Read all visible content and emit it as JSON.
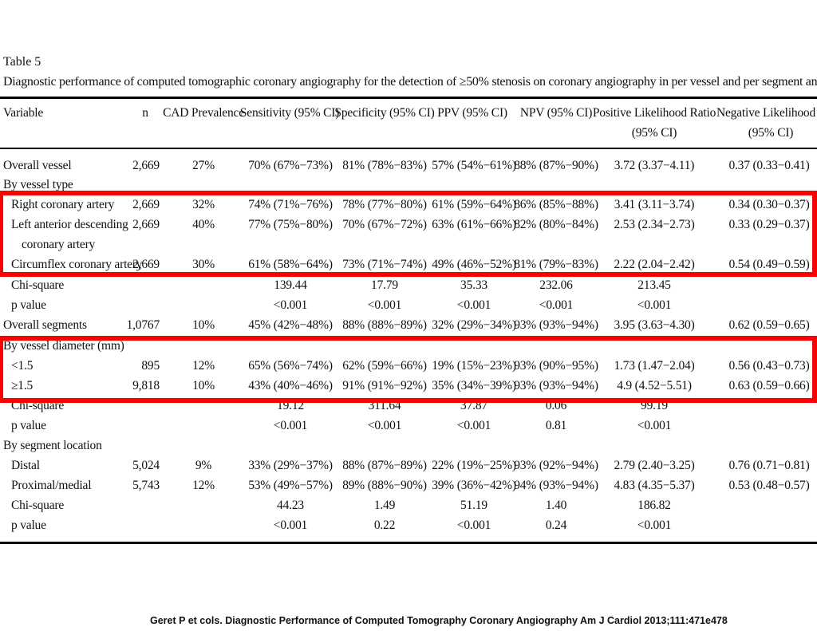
{
  "table": {
    "title": "Table 5",
    "description": "Diagnostic performance of computed tomographic coronary angiography for the detection of ≥50% stenosis on coronary angiography in per vessel and per segment analyses",
    "headers": {
      "variable": "Variable",
      "n": "n",
      "cad": "CAD Prevalence",
      "sens": "Sensitivity (95% CI)",
      "spec": "Specificity (95% CI)",
      "ppv": "PPV (95% CI)",
      "npv": "NPV (95% CI)",
      "plr": [
        "Positive Likelihood Ratio",
        "(95% CI)"
      ],
      "nlr": [
        "Negative Likelihood Ratio",
        "(95% CI)"
      ]
    },
    "rows": [
      {
        "variable": "Overall vessel",
        "indent": 0,
        "n": "2,669",
        "cad": "27%",
        "sens": "70% (67%−73%)",
        "spec": "81% (78%−83%)",
        "ppv": "57% (54%−61%)",
        "npv": "88% (87%−90%)",
        "plr": "3.72 (3.37−4.11)",
        "nlr": "0.37 (0.33−0.41)"
      },
      {
        "variable": "By vessel type",
        "indent": 0
      },
      {
        "variable": "Right coronary artery",
        "indent": 1,
        "n": "2,669",
        "cad": "32%",
        "sens": "74% (71%−76%)",
        "spec": "78% (77%−80%)",
        "ppv": "61% (59%−64%)",
        "npv": "86% (85%−88%)",
        "plr": "3.41 (3.11−3.74)",
        "nlr": "0.34 (0.30−0.37)"
      },
      {
        "variable": "Left anterior descending",
        "indent": 1,
        "n": "2,669",
        "cad": "40%",
        "sens": "77% (75%−80%)",
        "spec": "70% (67%−72%)",
        "ppv": "63% (61%−66%)",
        "npv": "82% (80%−84%)",
        "plr": "2.53 (2.34−2.73)",
        "nlr": "0.33 (0.29−0.37)"
      },
      {
        "variable": "coronary artery",
        "indent": 2
      },
      {
        "variable": "Circumflex coronary artery",
        "indent": 1,
        "n": "2,669",
        "cad": "30%",
        "sens": "61% (58%−64%)",
        "spec": "73% (71%−74%)",
        "ppv": "49% (46%−52%)",
        "npv": "81% (79%−83%)",
        "plr": "2.22 (2.04−2.42)",
        "nlr": "0.54 (0.49−0.59)"
      },
      {
        "variable": "Chi-square",
        "indent": 1,
        "sens": "139.44",
        "spec": "17.79",
        "ppv": "35.33",
        "npv": "232.06",
        "plr": "213.45"
      },
      {
        "variable": "p value",
        "indent": 1,
        "sens": "<0.001",
        "spec": "<0.001",
        "ppv": "<0.001",
        "npv": "<0.001",
        "plr": "<0.001"
      },
      {
        "variable": "Overall segments",
        "indent": 0,
        "n": "1,0767",
        "cad": "10%",
        "sens": "45% (42%−48%)",
        "spec": "88% (88%−89%)",
        "ppv": "32% (29%−34%)",
        "npv": "93% (93%−94%)",
        "plr": "3.95 (3.63−4.30)",
        "nlr": "0.62 (0.59−0.65)"
      },
      {
        "variable": "By vessel diameter (mm)",
        "indent": 0
      },
      {
        "variable": "<1.5",
        "indent": 1,
        "n": "895",
        "cad": "12%",
        "sens": "65% (56%−74%)",
        "spec": "62% (59%−66%)",
        "ppv": "19% (15%−23%)",
        "npv": "93% (90%−95%)",
        "plr": "1.73 (1.47−2.04)",
        "nlr": "0.56 (0.43−0.73)"
      },
      {
        "variable": "≥1.5",
        "indent": 1,
        "n": "9,818",
        "cad": "10%",
        "sens": "43% (40%−46%)",
        "spec": "91% (91%−92%)",
        "ppv": "35% (34%−39%)",
        "npv": "93% (93%−94%)",
        "plr": "4.9 (4.52−5.51)",
        "nlr": "0.63 (0.59−0.66)"
      },
      {
        "variable": "Chi-square",
        "indent": 1,
        "sens": "19.12",
        "spec": "311.64",
        "ppv": "37.87",
        "npv": "0.06",
        "plr": "99.19"
      },
      {
        "variable": "p value",
        "indent": 1,
        "sens": "<0.001",
        "spec": "<0.001",
        "ppv": "<0.001",
        "npv": "0.81",
        "plr": "<0.001"
      },
      {
        "variable": "By segment location",
        "indent": 0
      },
      {
        "variable": "Distal",
        "indent": 1,
        "n": "5,024",
        "cad": "9%",
        "sens": "33% (29%−37%)",
        "spec": "88% (87%−89%)",
        "ppv": "22% (19%−25%)",
        "npv": "93% (92%−94%)",
        "plr": "2.79 (2.40−3.25)",
        "nlr": "0.76 (0.71−0.81)"
      },
      {
        "variable": "Proximal/medial",
        "indent": 1,
        "n": "5,743",
        "cad": "12%",
        "sens": "53% (49%−57%)",
        "spec": "89% (88%−90%)",
        "ppv": "39% (36%−42%)",
        "npv": "94% (93%−94%)",
        "plr": "4.83 (4.35−5.37)",
        "nlr": "0.53 (0.48−0.57)"
      },
      {
        "variable": "Chi-square",
        "indent": 1,
        "sens": "44.23",
        "spec": "1.49",
        "ppv": "51.19",
        "npv": "1.40",
        "plr": "186.82"
      },
      {
        "variable": "p value",
        "indent": 1,
        "sens": "<0.001",
        "spec": "0.22",
        "ppv": "<0.001",
        "npv": "0.24",
        "plr": "<0.001"
      }
    ]
  },
  "highlight_color": "#ff0000",
  "citation": "Geret P et cols. Diagnostic Performance of Computed Tomography Coronary Angiography Am J Cardiol 2013;111:471e478"
}
